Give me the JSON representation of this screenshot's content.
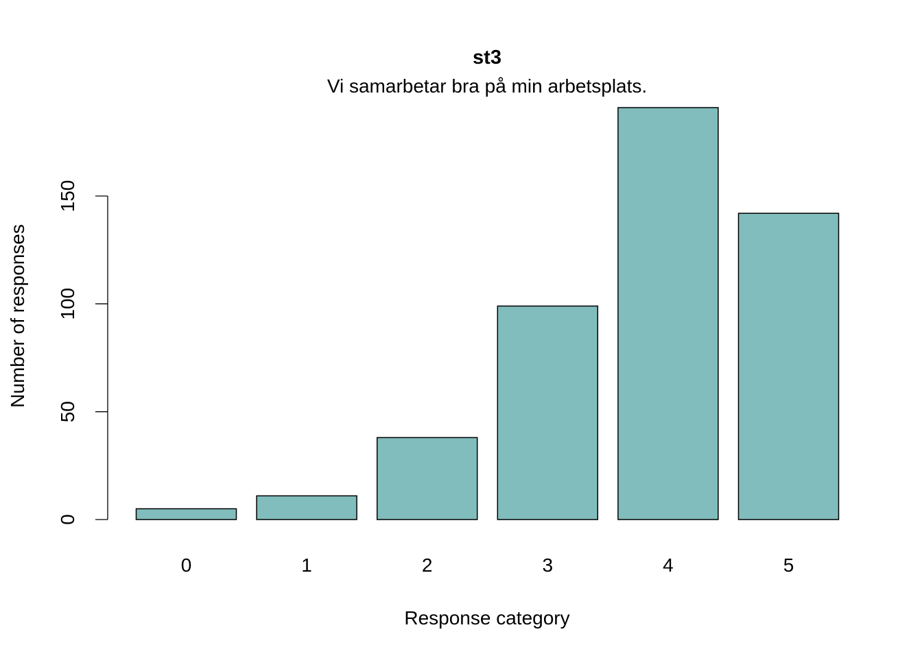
{
  "chart_data": {
    "type": "bar",
    "title": "st3",
    "subtitle": "Vi samarbetar bra på min arbetsplats.",
    "xlabel": "Response category",
    "ylabel": "Number of responses",
    "categories": [
      "0",
      "1",
      "2",
      "3",
      "4",
      "5"
    ],
    "values": [
      5,
      11,
      38,
      99,
      191,
      142
    ],
    "yticks": [
      0,
      50,
      100,
      150
    ],
    "ylim": [
      0,
      191
    ],
    "grid": false,
    "legend": "none",
    "bar_color": "#80BDBC",
    "bar_edge_color": "#000000"
  }
}
